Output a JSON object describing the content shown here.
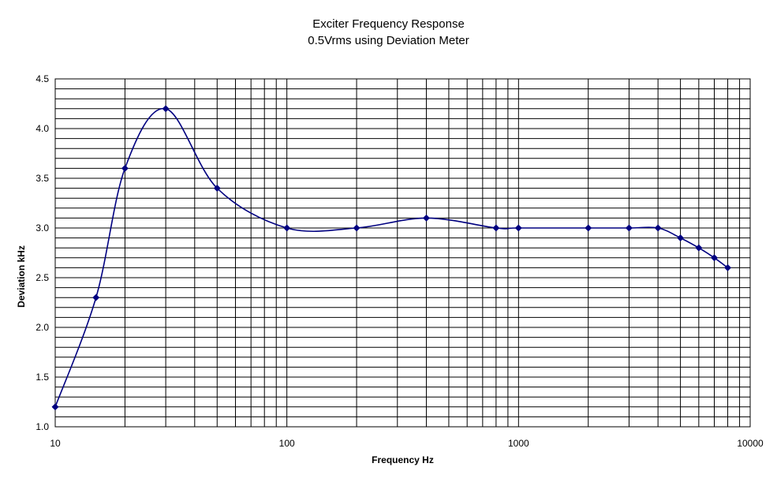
{
  "chart_data": {
    "type": "line",
    "title": "Exciter Frequency Response",
    "subtitle": "0.5Vrms using Deviation Meter",
    "xlabel": "Frequency Hz",
    "ylabel": "Deviation kHz",
    "x_scale": "log",
    "xlim": [
      10,
      10000
    ],
    "ylim": [
      1.0,
      4.5
    ],
    "x_ticks": [
      "10",
      "100",
      "1000",
      "10000"
    ],
    "y_ticks": [
      "1.0",
      "1.5",
      "2.0",
      "2.5",
      "3.0",
      "3.5",
      "4.0",
      "4.5"
    ],
    "grid": true,
    "legend": "none",
    "smoothed": true,
    "series": [
      {
        "color": "#000080",
        "marker": "diamond",
        "points": [
          {
            "x": 10,
            "y": 1.2
          },
          {
            "x": 15,
            "y": 2.3
          },
          {
            "x": 20,
            "y": 3.6
          },
          {
            "x": 30,
            "y": 4.2
          },
          {
            "x": 50,
            "y": 3.4
          },
          {
            "x": 100,
            "y": 3.0
          },
          {
            "x": 200,
            "y": 3.0
          },
          {
            "x": 400,
            "y": 3.1
          },
          {
            "x": 800,
            "y": 3.0
          },
          {
            "x": 1000,
            "y": 3.0
          },
          {
            "x": 2000,
            "y": 3.0
          },
          {
            "x": 3000,
            "y": 3.0
          },
          {
            "x": 4000,
            "y": 3.0
          },
          {
            "x": 5000,
            "y": 2.9
          },
          {
            "x": 6000,
            "y": 2.8
          },
          {
            "x": 7000,
            "y": 2.7
          },
          {
            "x": 8000,
            "y": 2.6
          }
        ]
      }
    ]
  }
}
